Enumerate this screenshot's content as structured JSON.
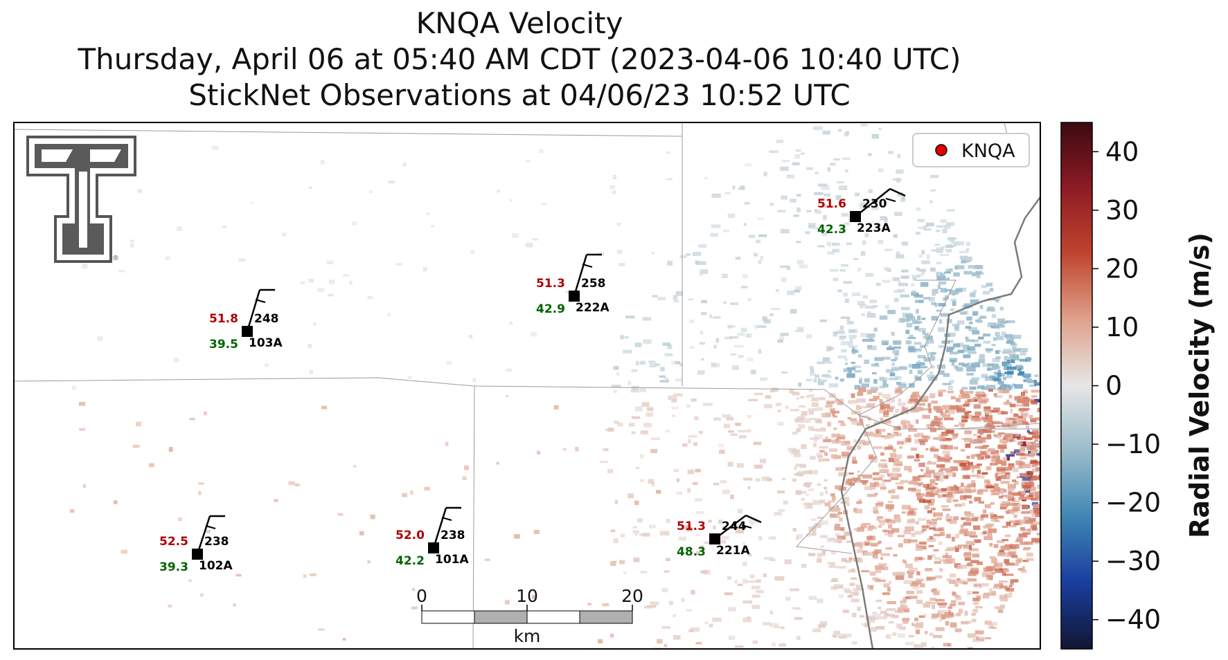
{
  "title": {
    "line1": "KNQA Velocity",
    "line2": "Thursday, April 06 at 05:40 AM CDT (2023-04-06 10:40 UTC)",
    "line3": "StickNet Observations at 04/06/23 10:52 UTC"
  },
  "legend": {
    "label": "KNQA",
    "marker_color": "#e00000"
  },
  "colorbar": {
    "label": "Radial Velocity (m/s)",
    "ticks": [
      "40",
      "30",
      "20",
      "10",
      "0",
      "−10",
      "−20",
      "−30",
      "−40"
    ],
    "range": [
      -45,
      45
    ]
  },
  "scalebar": {
    "labels": [
      "0",
      "10",
      "20"
    ],
    "unit": "km"
  },
  "stations": [
    {
      "id": "103A",
      "temp": "51.8",
      "dew": "39.5",
      "dir": "248"
    },
    {
      "id": "222A",
      "temp": "51.3",
      "dew": "42.9",
      "dir": "258"
    },
    {
      "id": "223A",
      "temp": "51.6",
      "dew": "42.3",
      "dir": "230"
    },
    {
      "id": "102A",
      "temp": "52.5",
      "dew": "39.3",
      "dir": "238"
    },
    {
      "id": "101A",
      "temp": "52.0",
      "dew": "42.2",
      "dir": "238"
    },
    {
      "id": "221A",
      "temp": "51.3",
      "dew": "48.3",
      "dir": "244"
    }
  ],
  "logo": {
    "name": "texas-tech-double-t-logo",
    "mark": "®"
  }
}
